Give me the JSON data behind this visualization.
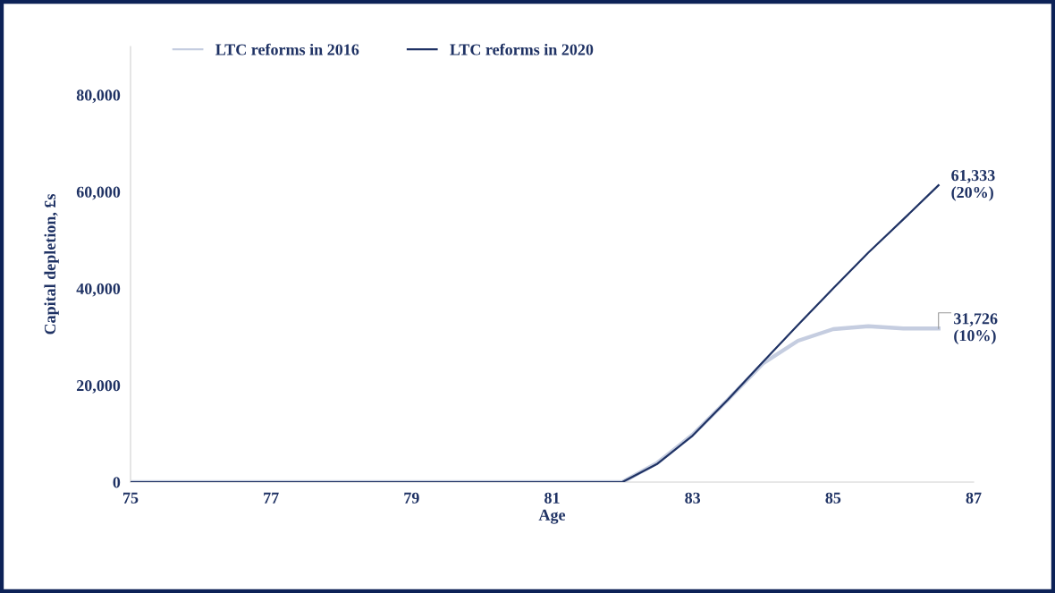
{
  "chart_data": {
    "type": "line",
    "xlabel": "Age",
    "ylabel": "Capital depletion, £s",
    "x": [
      75,
      76,
      77,
      78,
      79,
      80,
      81,
      82,
      82.5,
      83,
      83.5,
      84,
      84.5,
      85,
      85.5,
      86,
      86.5
    ],
    "series": [
      {
        "name": "LTC reforms in 2016",
        "color": "#c5cde0",
        "values": [
          0,
          0,
          0,
          0,
          0,
          0,
          0,
          0,
          4000,
          9800,
          17000,
          24500,
          29200,
          31600,
          32200,
          31726,
          31726
        ]
      },
      {
        "name": "LTC reforms in 2020",
        "color": "#1f3264",
        "values": [
          0,
          0,
          0,
          0,
          0,
          0,
          0,
          0,
          3800,
          9600,
          17000,
          24800,
          32500,
          40000,
          47400,
          54300,
          61333
        ]
      }
    ],
    "xlim": [
      75,
      87
    ],
    "xticks": [
      75,
      77,
      79,
      81,
      83,
      85,
      87
    ],
    "ylim": [
      0,
      90000
    ],
    "yticks": [
      {
        "value": 0,
        "label": "0"
      },
      {
        "value": 20000,
        "label": "20,000"
      },
      {
        "value": 40000,
        "label": "40,000"
      },
      {
        "value": 60000,
        "label": "60,000"
      },
      {
        "value": 80000,
        "label": "80,000"
      }
    ],
    "annotations": [
      {
        "text": "61,333\n(20%)",
        "x": 86.5,
        "y": 61333
      },
      {
        "text": "31,726\n(10%)",
        "x": 86.5,
        "y": 31726
      }
    ],
    "legend": "top",
    "grid": false,
    "marker": "none",
    "line_style": "solid"
  }
}
